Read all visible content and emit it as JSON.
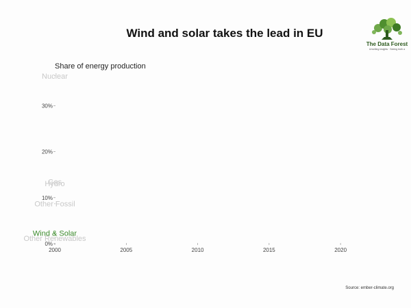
{
  "chart_data": {
    "type": "line",
    "title": "Wind and solar takes the lead in EU",
    "subtitle": "Share of energy production",
    "xlabel": "",
    "ylabel": "",
    "xlim": [
      2000,
      2021
    ],
    "ylim": [
      0,
      32
    ],
    "x_ticks": [
      2000,
      2005,
      2010,
      2015,
      2020
    ],
    "x_tick_labels": [
      "2000",
      "2005",
      "2010",
      "2015",
      "2020"
    ],
    "y_ticks": [
      0,
      10,
      20,
      30
    ],
    "y_tick_labels": [
      "0%",
      "10%",
      "20%",
      "30%"
    ],
    "grid": false,
    "series": [
      {
        "name": "Nuclear",
        "color": "#c8c8c8",
        "x": [
          2000
        ],
        "values": [
          36.5
        ]
      },
      {
        "name": "Gas",
        "color": "#c8c8c8",
        "x": [
          2000
        ],
        "values": [
          13.5
        ]
      },
      {
        "name": "Hydro",
        "color": "#c8c8c8",
        "x": [
          2000
        ],
        "values": [
          13.1
        ]
      },
      {
        "name": "Other Fossil",
        "color": "#c8c8c8",
        "x": [
          2000
        ],
        "values": [
          8.7
        ]
      },
      {
        "name": "Wind & Solar",
        "color": "#3a8a2a",
        "x": [
          2000
        ],
        "values": [
          2.3
        ]
      },
      {
        "name": "Other Renewables",
        "color": "#c8c8c8",
        "x": [
          2000
        ],
        "values": [
          1.2
        ]
      }
    ]
  },
  "source": "Source: ember-climate.org",
  "logo": {
    "name": "The Data Forest",
    "tagline": "Unveiling insights · Seeing truth a"
  }
}
